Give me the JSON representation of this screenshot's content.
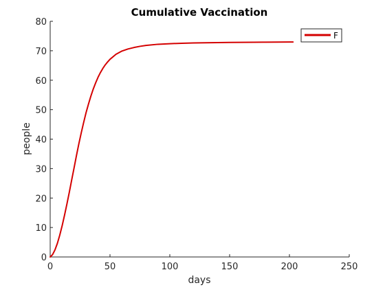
{
  "chart_data": {
    "type": "line",
    "title": "Cumulative Vaccination",
    "xlabel": "days",
    "ylabel": "people",
    "xlim": [
      0,
      250
    ],
    "ylim": [
      0,
      80
    ],
    "xticks": [
      0,
      50,
      100,
      150,
      200,
      250
    ],
    "yticks": [
      0,
      10,
      20,
      30,
      40,
      50,
      60,
      70,
      80
    ],
    "grid": false,
    "legend_position": "top-right",
    "series": [
      {
        "name": "F",
        "color": "#d40000",
        "x": [
          0,
          2,
          4,
          6,
          8,
          10,
          12,
          14,
          16,
          18,
          20,
          22,
          24,
          26,
          28,
          30,
          32,
          34,
          36,
          38,
          40,
          42,
          44,
          46,
          48,
          50,
          55,
          60,
          65,
          70,
          75,
          80,
          90,
          100,
          110,
          120,
          130,
          140,
          150,
          160,
          170,
          180,
          190,
          200,
          203
        ],
        "y": [
          0,
          0.8,
          2.4,
          4.6,
          7.4,
          10.6,
          14.2,
          18.0,
          22.0,
          26.2,
          30.3,
          34.5,
          38.5,
          42.2,
          45.7,
          49.0,
          51.9,
          54.6,
          57.0,
          59.1,
          61.0,
          62.6,
          64.0,
          65.2,
          66.2,
          67.1,
          68.8,
          69.9,
          70.6,
          71.1,
          71.5,
          71.8,
          72.2,
          72.4,
          72.55,
          72.65,
          72.72,
          72.78,
          72.82,
          72.86,
          72.89,
          72.92,
          72.94,
          72.96,
          72.97
        ]
      }
    ]
  }
}
